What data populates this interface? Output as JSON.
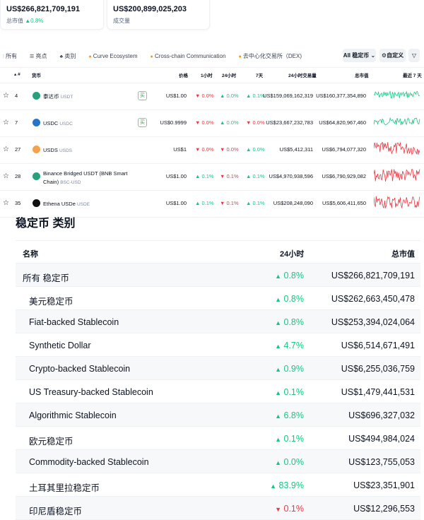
{
  "stats": [
    {
      "value": "US$266,821,709,191",
      "label": "总市值",
      "change": "0.8%",
      "dir": "up"
    },
    {
      "value": "US$200,899,025,203",
      "label": "成交量"
    }
  ],
  "tabs": [
    {
      "icon": "bar-chart-icon",
      "label": "所有"
    },
    {
      "icon": "list-icon",
      "label": "亮点"
    },
    {
      "icon": "shapes-icon",
      "label": "类别"
    },
    {
      "icon": "fire-icon",
      "label": "Curve Ecosystem"
    },
    {
      "icon": "fire-icon",
      "label": "Cross-chain Communication"
    },
    {
      "icon": "fire-icon",
      "label": "去中心化交易所（DEX)"
    }
  ],
  "controls": {
    "filter_select": "All 稳定币",
    "customize": "自定义"
  },
  "table": {
    "headers": {
      "rank": "#",
      "coin": "货币",
      "price": "价格",
      "h1": "1小时",
      "h24": "24小时",
      "d7": "7天",
      "volume": "24小时交易量",
      "mcap": "总市值",
      "chart": "最近 7 天"
    },
    "buy_label": "买",
    "rows": [
      {
        "rank": "4",
        "name": "泰达币",
        "symbol": "USDT",
        "buy": true,
        "price": "US$1.00",
        "h1": [
          "0.0%",
          "dn"
        ],
        "h24": [
          "0.0%",
          "up"
        ],
        "d7": [
          "0.1%",
          "up"
        ],
        "volume": "US$159,069,162,319",
        "mcap": "US$160,377,354,890",
        "spark": "#16c784",
        "logo": "#26a17b"
      },
      {
        "rank": "7",
        "name": "USDC",
        "symbol": "USDC",
        "buy": true,
        "price": "US$0.9999",
        "h1": [
          "0.0%",
          "dn"
        ],
        "h24": [
          "0.0%",
          "up"
        ],
        "d7": [
          "0.0%",
          "dn"
        ],
        "volume": "US$23,667,232,783",
        "mcap": "US$64,820,967,460",
        "spark": "#16c784",
        "logo": "#2775ca"
      },
      {
        "rank": "27",
        "name": "USDS",
        "symbol": "USDS",
        "buy": false,
        "price": "US$1",
        "h1": [
          "0.0%",
          "dn"
        ],
        "h24": [
          "0.0%",
          "dn"
        ],
        "d7": [
          "0.0%",
          "up"
        ],
        "volume": "US$5,412,311",
        "mcap": "US$6,794,077,320",
        "spark": "#ea3943",
        "logo": "#f5a34a"
      },
      {
        "rank": "28",
        "name": "Binance Bridged USDT (BNB Smart Chain)",
        "symbol": "BSC-USD",
        "buy": false,
        "price": "US$1.00",
        "h1": [
          "0.1%",
          "up"
        ],
        "h24": [
          "0.1%",
          "dn"
        ],
        "d7": [
          "0.1%",
          "up"
        ],
        "volume": "US$4,970,938,596",
        "mcap": "US$6,790,929,082",
        "spark": "#ea3943",
        "logo": "#26a17b"
      },
      {
        "rank": "35",
        "name": "Ethena USDe",
        "symbol": "USDE",
        "buy": false,
        "price": "US$1.00",
        "h1": [
          "0.1%",
          "up"
        ],
        "h24": [
          "0.1%",
          "dn"
        ],
        "d7": [
          "0.1%",
          "up"
        ],
        "volume": "US$208,248,090",
        "mcap": "US$5,606,411,650",
        "spark": "#ea3943",
        "logo": "#111111"
      }
    ]
  },
  "categories": {
    "title": "稳定币 类别",
    "headers": {
      "name": "名称",
      "h24": "24小时",
      "mcap": "总市值"
    },
    "rows": [
      {
        "name": "所有 稳定币",
        "change": "0.8%",
        "dir": "up",
        "mcap": "US$266,821,709,191"
      },
      {
        "name": "美元稳定币",
        "change": "0.8%",
        "dir": "up",
        "mcap": "US$262,663,450,478"
      },
      {
        "name": "Fiat-backed Stablecoin",
        "change": "0.8%",
        "dir": "up",
        "mcap": "US$253,394,024,064"
      },
      {
        "name": "Synthetic Dollar",
        "change": "4.7%",
        "dir": "up",
        "mcap": "US$6,514,671,491"
      },
      {
        "name": "Crypto-backed Stablecoin",
        "change": "0.9%",
        "dir": "up",
        "mcap": "US$6,255,036,759"
      },
      {
        "name": "US Treasury-backed Stablecoin",
        "change": "0.1%",
        "dir": "up",
        "mcap": "US$1,479,441,531"
      },
      {
        "name": "Algorithmic Stablecoin",
        "change": "6.8%",
        "dir": "up",
        "mcap": "US$696,327,032"
      },
      {
        "name": "欧元稳定币",
        "change": "0.1%",
        "dir": "up",
        "mcap": "US$494,984,024"
      },
      {
        "name": "Commodity-backed Stablecoin",
        "change": "0.0%",
        "dir": "up",
        "mcap": "US$123,755,053"
      },
      {
        "name": "土耳其里拉稳定币",
        "change": "83.9%",
        "dir": "up",
        "mcap": "US$23,351,901"
      },
      {
        "name": "印尼盾稳定币",
        "change": "0.1%",
        "dir": "dn",
        "mcap": "US$12,296,553"
      }
    ]
  }
}
